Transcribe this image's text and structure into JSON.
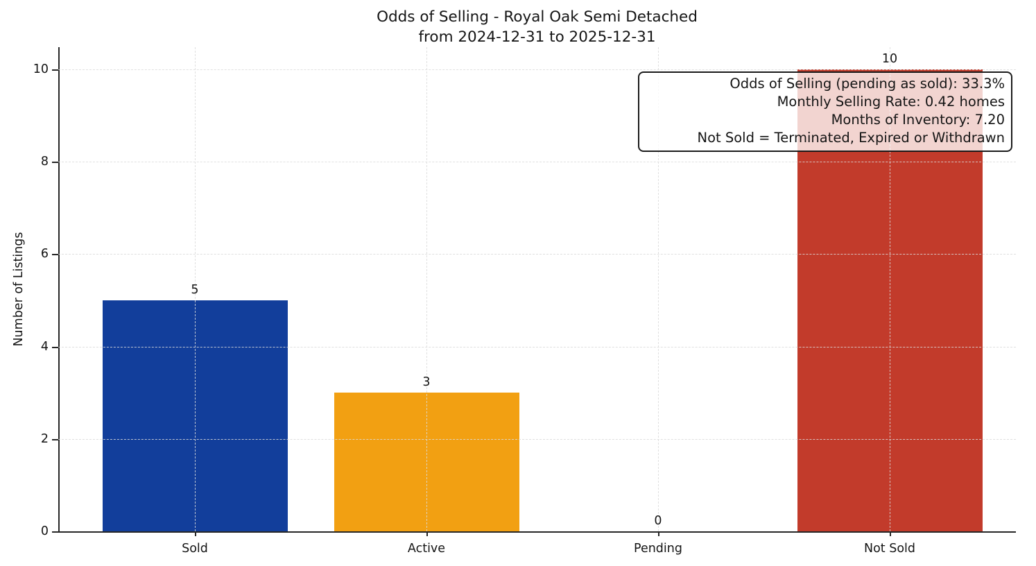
{
  "header": {
    "title_line1": "Odds of Selling - Royal Oak Semi Detached",
    "title_line2": "from 2024-12-31 to 2025-12-31"
  },
  "chart_data": {
    "type": "bar",
    "title": "Odds of Selling - Royal Oak Semi Detached\nfrom 2024-12-31 to 2025-12-31",
    "categories": [
      "Sold",
      "Active",
      "Pending",
      "Not Sold"
    ],
    "values": [
      5,
      3,
      0,
      10
    ],
    "value_labels": [
      "5",
      "3",
      "0",
      "10"
    ],
    "bar_colors": [
      "#123E9B",
      "#F2A012",
      null,
      "#C23B2B"
    ],
    "xlabel": "",
    "ylabel": "Number of Listings",
    "yticks": [
      0,
      2,
      4,
      6,
      8,
      10
    ],
    "ylim": [
      0,
      10.48
    ],
    "grid": true,
    "grid_style": "dashed",
    "legend": "none",
    "annotation": {
      "lines": [
        "Odds of Selling (pending as sold): 33.3%",
        "Monthly Selling Rate: 0.42 homes",
        "Months of Inventory: 7.20",
        "Not Sold = Terminated, Expired or Withdrawn"
      ]
    },
    "colors": {
      "axis": "#262626",
      "gridline": "#dadada",
      "text": "#141414",
      "background": "#ffffff",
      "annotation_border": "#1a1a1a"
    }
  }
}
